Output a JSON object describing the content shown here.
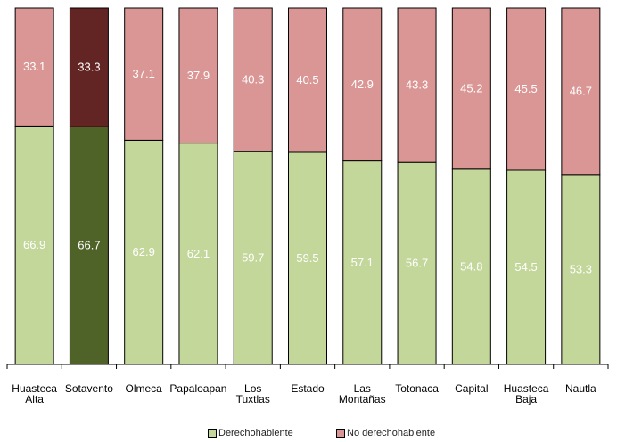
{
  "chart_data": {
    "type": "bar",
    "stacked": true,
    "categories": [
      "Huasteca Alta",
      "Sotavento",
      "Olmeca",
      "Papaloapan",
      "Los Tuxtlas",
      "Estado",
      "Las Montañas",
      "Totonaca",
      "Capital",
      "Huasteca Baja",
      "Nautla"
    ],
    "category_lines": [
      [
        "Huasteca",
        "Alta"
      ],
      [
        "Sotavento"
      ],
      [
        "Olmeca"
      ],
      [
        "Papaloapan"
      ],
      [
        "Los",
        "Tuxtlas"
      ],
      [
        "Estado"
      ],
      [
        "Las",
        "Montañas"
      ],
      [
        "Totonaca"
      ],
      [
        "Capital"
      ],
      [
        "Huasteca",
        "Baja"
      ],
      [
        "Nautla"
      ]
    ],
    "series": [
      {
        "name": "Derechohabiente",
        "values": [
          66.9,
          66.7,
          62.9,
          62.1,
          59.7,
          59.5,
          57.1,
          56.7,
          54.8,
          54.5,
          53.3
        ],
        "labels": [
          "66.9",
          "66.7",
          "62.9",
          "62.1",
          "59.7",
          "59.5",
          "57.1",
          "56.7",
          "54.8",
          "54.5",
          "53.3"
        ]
      },
      {
        "name": "No derechohabiente",
        "values": [
          33.1,
          33.3,
          37.1,
          37.9,
          40.3,
          40.5,
          42.9,
          43.3,
          45.2,
          45.5,
          46.7
        ],
        "labels": [
          "33.1",
          "33.3",
          "37.1",
          "37.9",
          "40.3",
          "40.5",
          "42.9",
          "43.3",
          "45.2",
          "45.5",
          "46.7"
        ]
      }
    ],
    "ylim": [
      0,
      100
    ],
    "highlight_category": "Sotavento",
    "colors": {
      "derecho": "#c4d79b",
      "no_derecho": "#da9694",
      "derecho_highlight": "#4f6228",
      "no_derecho_highlight": "#632523",
      "axis": "#000000"
    },
    "legend_position": "bottom",
    "grid": false,
    "title": "",
    "xlabel": "",
    "ylabel": ""
  }
}
